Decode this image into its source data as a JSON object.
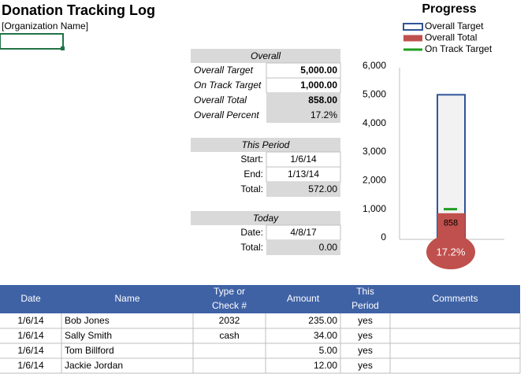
{
  "header": {
    "title": "Donation Tracking Log",
    "organization": "[Organization Name]"
  },
  "overall": {
    "heading": "Overall",
    "rows": [
      {
        "label": "Overall Target",
        "value": "5,000.00"
      },
      {
        "label": "On Track Target",
        "value": "1,000.00"
      },
      {
        "label": "Overall Total",
        "value": "858.00"
      },
      {
        "label": "Overall Percent",
        "value": "17.2%"
      }
    ]
  },
  "period": {
    "heading": "This Period",
    "rows": [
      {
        "label": "Start:",
        "value": "1/6/14"
      },
      {
        "label": "End:",
        "value": "1/13/14"
      },
      {
        "label": "Total:",
        "value": "572.00"
      }
    ]
  },
  "today": {
    "heading": "Today",
    "rows": [
      {
        "label": "Date:",
        "value": "4/8/17"
      },
      {
        "label": "Total:",
        "value": "0.00"
      }
    ]
  },
  "chart": {
    "type": "bar",
    "title": "Progress",
    "ylim": [
      0,
      6000
    ],
    "yticks": [
      0,
      {
        "value": 1000,
        "label": "1,000"
      },
      {
        "value": 2000,
        "label": "2,000"
      },
      {
        "value": 3000,
        "label": "3,000"
      },
      {
        "value": 4000,
        "label": "4,000"
      },
      {
        "value": 5000,
        "label": "5,000"
      },
      {
        "value": 6000,
        "label": "6,000"
      }
    ],
    "series": [
      {
        "name": "Overall Target",
        "color": "#2f5597",
        "values": [
          5000
        ]
      },
      {
        "name": "Overall Total",
        "color": "#c0504d",
        "values": [
          858
        ],
        "value_labels": [
          "858"
        ]
      },
      {
        "name": "On Track Target",
        "color": "#1f9e1f",
        "values": [
          1000
        ]
      }
    ],
    "percent_label": "17.2%"
  },
  "table": {
    "columns": [
      [
        "Date"
      ],
      [
        "Name"
      ],
      [
        "Type or",
        "Check #"
      ],
      [
        "Amount"
      ],
      [
        "This",
        "Period"
      ],
      [
        "Comments"
      ]
    ],
    "rows": [
      [
        "1/6/14",
        "Bob Jones",
        "2032",
        "235.00",
        "yes"
      ],
      [
        "1/6/14",
        "Sally Smith",
        "cash",
        "34.00",
        "yes"
      ],
      [
        "1/6/14",
        "Tom Billford",
        "",
        "5.00",
        "yes"
      ],
      [
        "1/6/14",
        "Jackie Jordan",
        "",
        "12.00",
        "yes"
      ]
    ]
  }
}
